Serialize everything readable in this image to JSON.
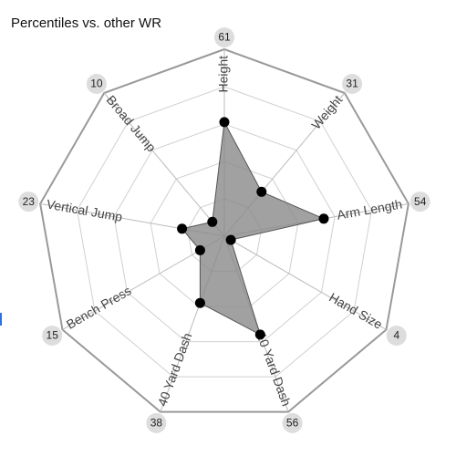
{
  "chart_data": {
    "type": "radar",
    "title": "Percentiles vs. other WR",
    "scale_max": 100,
    "rings": 5,
    "axes": [
      {
        "label": "Height",
        "value": 61
      },
      {
        "label": "Weight",
        "value": 31
      },
      {
        "label": "Arm Length",
        "value": 54
      },
      {
        "label": "Hand Size",
        "value": 4
      },
      {
        "label": "10 Yard Dash",
        "value": 56
      },
      {
        "label": "40 Yard Dash",
        "value": 38
      },
      {
        "label": "Bench Press",
        "value": 15
      },
      {
        "label": "Vertical Jump",
        "value": 23
      },
      {
        "label": "Broad Jump",
        "value": 10
      }
    ],
    "colors": {
      "polygon_fill": "#8a8a8a",
      "polygon_stroke": "#555555",
      "point": "#000000",
      "outer_ring": "#999999",
      "inner_ring": "#d0d0d0",
      "spoke": "#bbbbbb",
      "badge": "#dddddd"
    }
  }
}
